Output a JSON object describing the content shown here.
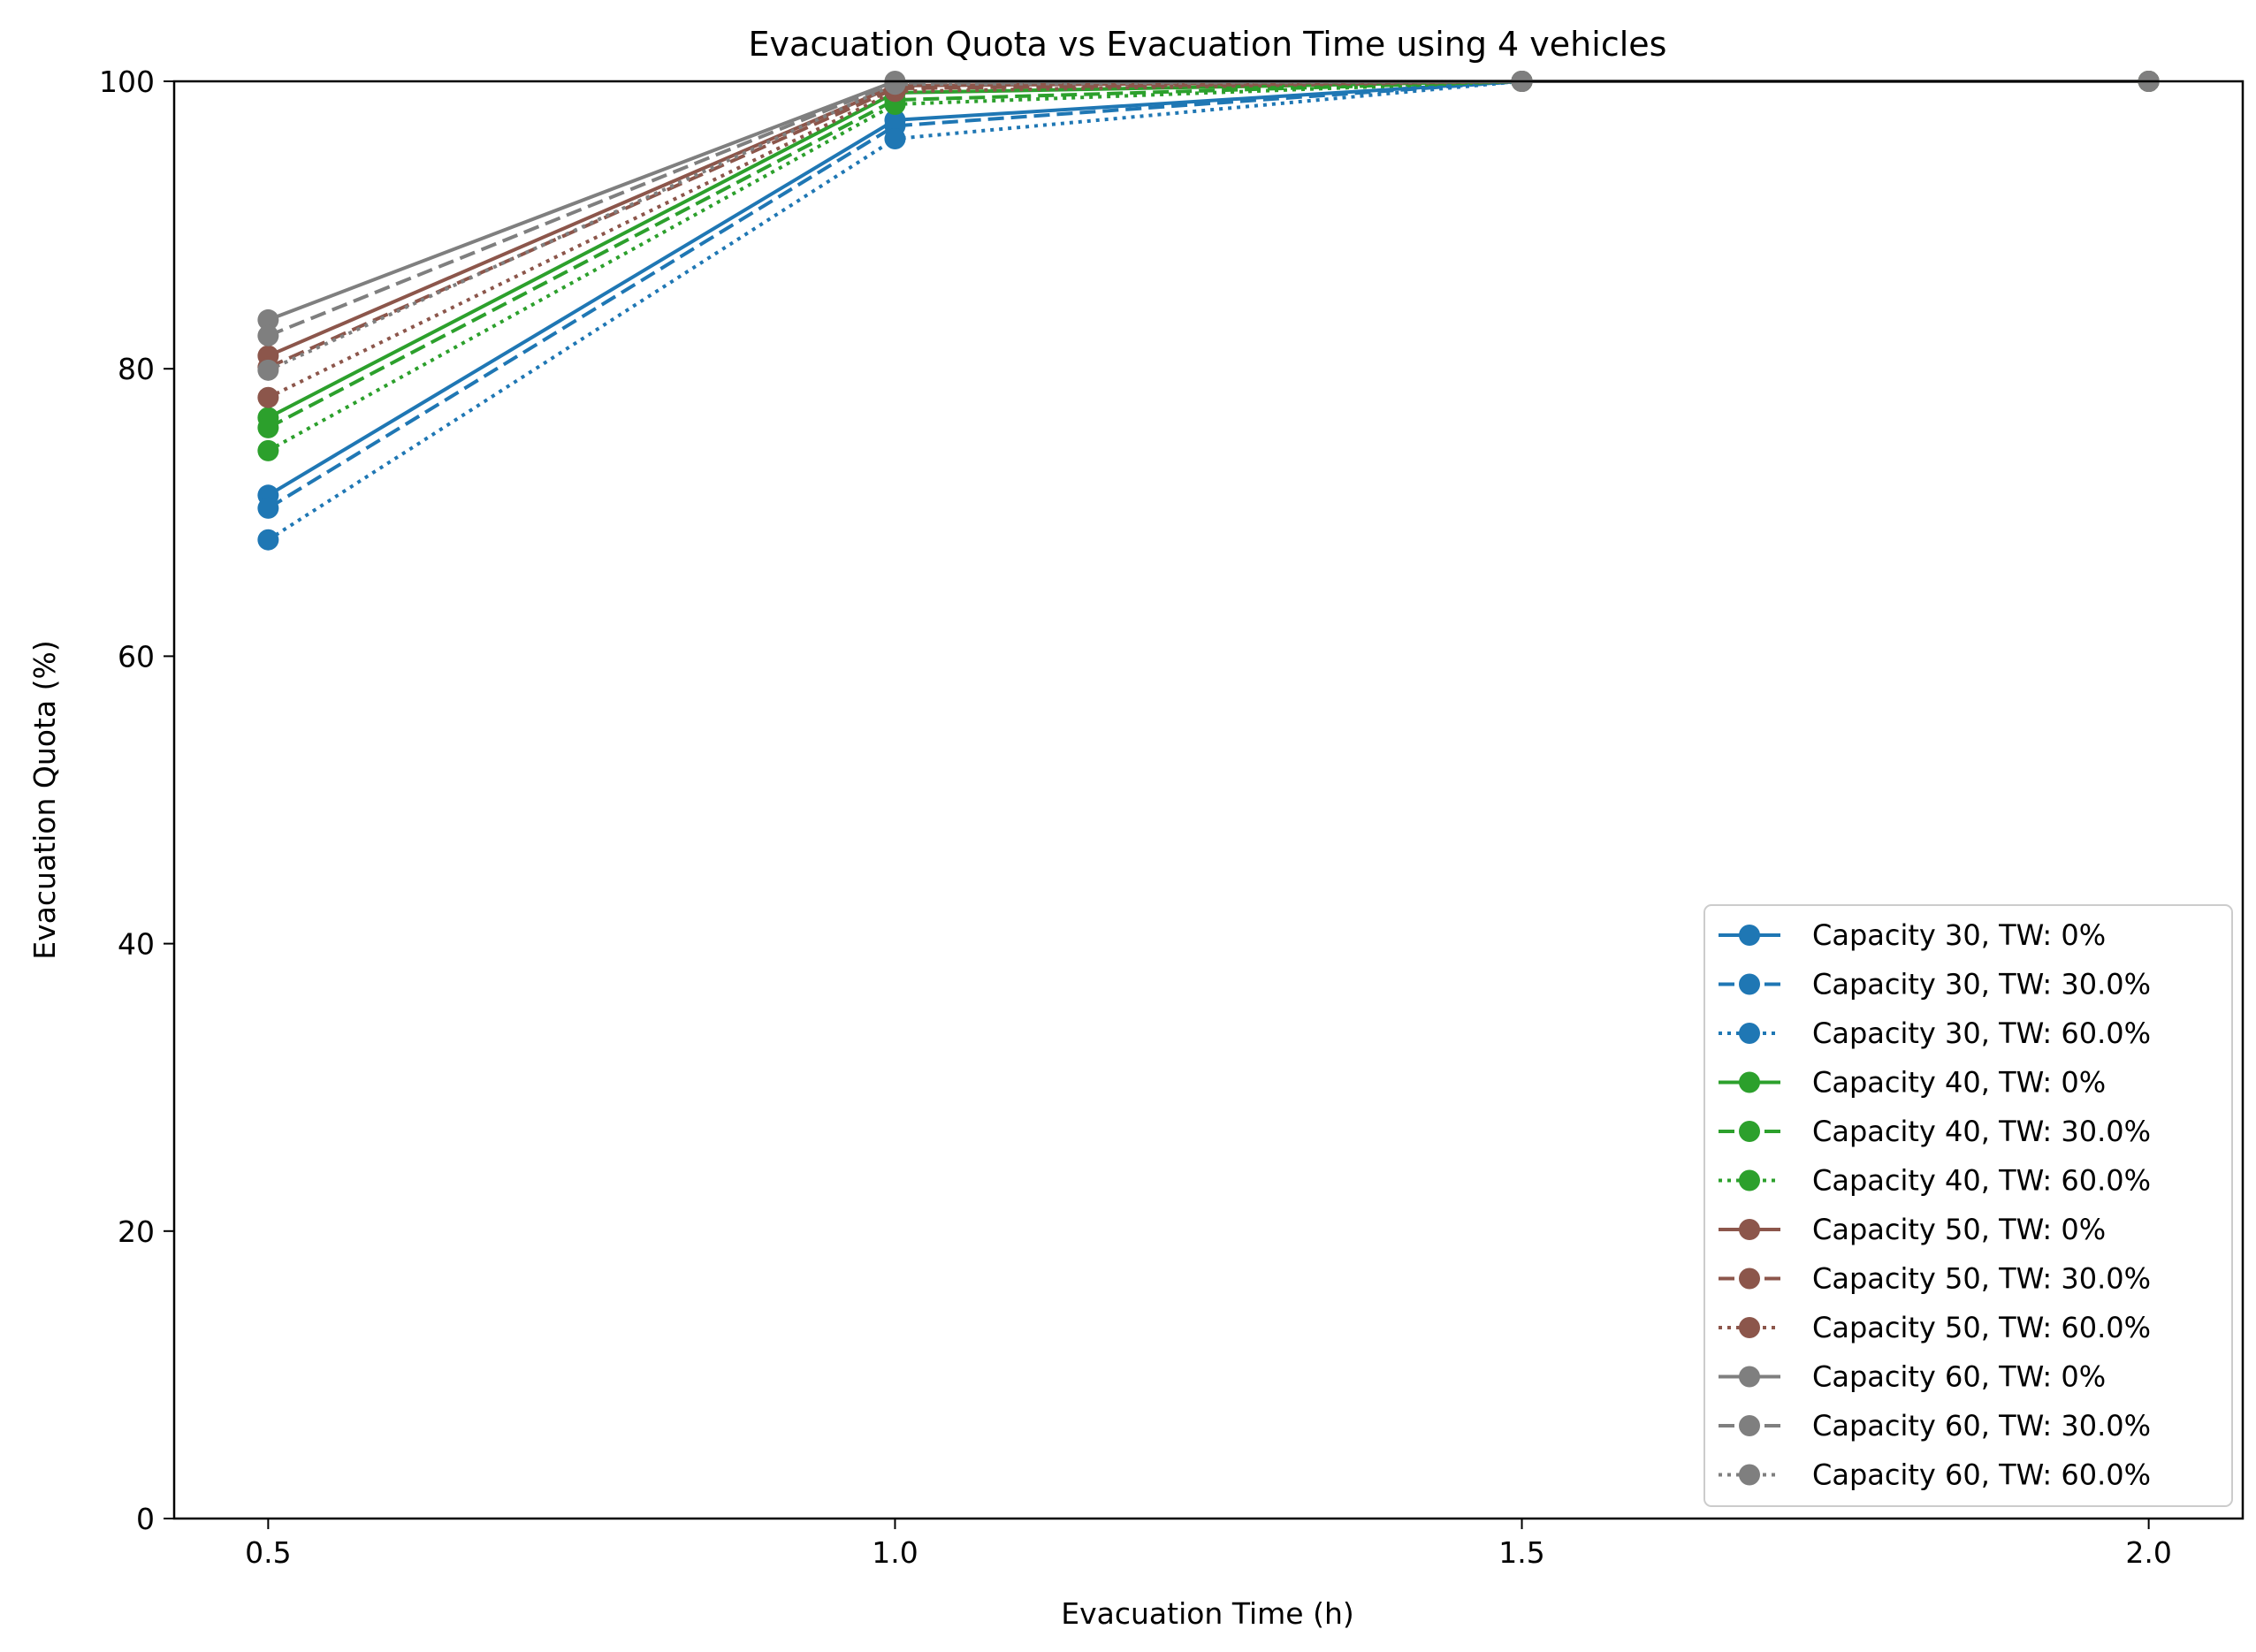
{
  "chart_data": {
    "type": "line",
    "title": "Evacuation Quota vs Evacuation Time using 4 vehicles",
    "xlabel": "Evacuation Time (h)",
    "ylabel": "Evacuation Quota (%)",
    "x": [
      0.5,
      1.0,
      1.5,
      2.0
    ],
    "xlim": [
      0.425,
      2.075
    ],
    "ylim": [
      0,
      100
    ],
    "xticks": [
      "0.5",
      "1.0",
      "1.5",
      "2.0"
    ],
    "yticks": [
      "0",
      "20",
      "40",
      "60",
      "80",
      "100"
    ],
    "legend_position": "lower right",
    "series": [
      {
        "name": "Capacity 30, TW: 0%",
        "color": "#1f77b4",
        "linestyle": "solid",
        "values": [
          71.2,
          97.3,
          100,
          100
        ]
      },
      {
        "name": "Capacity 30, TW: 30.0%",
        "color": "#1f77b4",
        "linestyle": "dashed",
        "values": [
          70.3,
          96.9,
          100,
          100
        ]
      },
      {
        "name": "Capacity 30, TW: 60.0%",
        "color": "#1f77b4",
        "linestyle": "dotted",
        "values": [
          68.1,
          96.0,
          100,
          100
        ]
      },
      {
        "name": "Capacity 40, TW: 0%",
        "color": "#2ca02c",
        "linestyle": "solid",
        "values": [
          76.6,
          99.2,
          100,
          100
        ]
      },
      {
        "name": "Capacity 40, TW: 30.0%",
        "color": "#2ca02c",
        "linestyle": "dashed",
        "values": [
          75.9,
          98.7,
          100,
          100
        ]
      },
      {
        "name": "Capacity 40, TW: 60.0%",
        "color": "#2ca02c",
        "linestyle": "dotted",
        "values": [
          74.3,
          98.4,
          100,
          100
        ]
      },
      {
        "name": "Capacity 50, TW: 0%",
        "color": "#8c564b",
        "linestyle": "solid",
        "values": [
          80.9,
          99.7,
          100,
          100
        ]
      },
      {
        "name": "Capacity 50, TW: 30.0%",
        "color": "#8c564b",
        "linestyle": "dashed",
        "values": [
          80.1,
          99.5,
          100,
          100
        ]
      },
      {
        "name": "Capacity 50, TW: 60.0%",
        "color": "#8c564b",
        "linestyle": "dotted",
        "values": [
          78.0,
          99.3,
          100,
          100
        ]
      },
      {
        "name": "Capacity 60, TW: 0%",
        "color": "#7f7f7f",
        "linestyle": "solid",
        "values": [
          83.4,
          100,
          100,
          100
        ]
      },
      {
        "name": "Capacity 60, TW: 30.0%",
        "color": "#7f7f7f",
        "linestyle": "dashed",
        "values": [
          82.3,
          99.9,
          100,
          100
        ]
      },
      {
        "name": "Capacity 60, TW: 60.0%",
        "color": "#7f7f7f",
        "linestyle": "dotted",
        "values": [
          79.9,
          99.8,
          100,
          100
        ]
      }
    ]
  }
}
